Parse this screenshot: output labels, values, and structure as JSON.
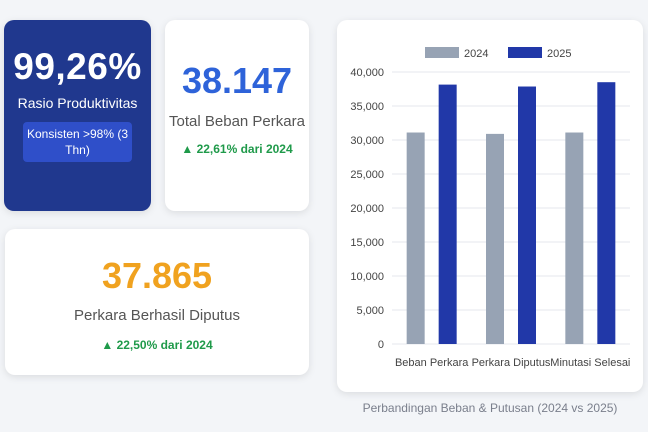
{
  "kpi_ratio": {
    "value": "99,26%",
    "label": "Rasio Produktivitas",
    "badge": "Konsisten >98% (3 Thn)"
  },
  "kpi_total": {
    "value": "38.147",
    "label": "Total Beban Perkara",
    "delta": "▲ 22,61% dari 2024"
  },
  "kpi_decided": {
    "value": "37.865",
    "label": "Perkara Berhasil Diputus",
    "delta": "▲ 22,50% dari 2024"
  },
  "caption": "Perbandingan Beban & Putusan (2024 vs 2025)",
  "chart_data": {
    "type": "bar",
    "title": "Perbandingan Beban & Putusan (2024 vs 2025)",
    "categories": [
      "Beban Perkara",
      "Perkara Diputus",
      "Minutasi Selesai"
    ],
    "series": [
      {
        "name": "2024",
        "color": "#97a3b4",
        "values": [
          31100,
          30900,
          31100
        ]
      },
      {
        "name": "2025",
        "color": "#2138a8",
        "values": [
          38147,
          37865,
          38500
        ]
      }
    ],
    "ylim": [
      0,
      40000
    ],
    "yticks": [
      "0",
      "5,000",
      "10,000",
      "15,000",
      "20,000",
      "25,000",
      "30,000",
      "35,000",
      "40,000"
    ],
    "ytick_values": [
      0,
      5000,
      10000,
      15000,
      20000,
      25000,
      30000,
      35000,
      40000
    ],
    "grid": true,
    "legend": "top-center"
  }
}
